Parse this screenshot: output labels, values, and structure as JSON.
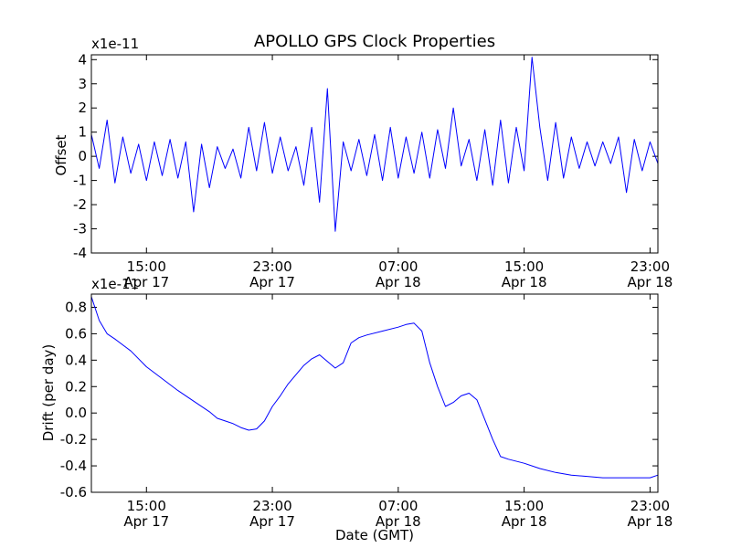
{
  "chart_data": [
    {
      "type": "line",
      "title": "APOLLO GPS Clock Properties",
      "ylabel": "Offset",
      "xlabel": "",
      "y_scale_label": "x1e-11",
      "ylim": [
        -4,
        4.2
      ],
      "yticks": [
        -4,
        -3,
        -2,
        -1,
        0,
        1,
        2,
        3,
        4
      ],
      "xlim": [
        "Apr 17 11:30",
        "Apr 18 23:30"
      ],
      "xticks": [
        {
          "time": "Apr 17 15:00",
          "label_top": "15:00",
          "label_bottom": "Apr 17"
        },
        {
          "time": "Apr 17 23:00",
          "label_top": "23:00",
          "label_bottom": "Apr 17"
        },
        {
          "time": "Apr 18 07:00",
          "label_top": "07:00",
          "label_bottom": "Apr 18"
        },
        {
          "time": "Apr 18 15:00",
          "label_top": "15:00",
          "label_bottom": "Apr 18"
        },
        {
          "time": "Apr 18 23:00",
          "label_top": "23:00",
          "label_bottom": "Apr 18"
        }
      ],
      "line_color": "#0000ff",
      "series": [
        {
          "x": [
            "Apr 17 11:30",
            "Apr 17 12:00",
            "Apr 17 12:30",
            "Apr 17 13:00",
            "Apr 17 13:30",
            "Apr 17 14:00",
            "Apr 17 14:30",
            "Apr 17 15:00",
            "Apr 17 15:30",
            "Apr 17 16:00",
            "Apr 17 16:30",
            "Apr 17 17:00",
            "Apr 17 17:30",
            "Apr 17 18:00",
            "Apr 17 18:30",
            "Apr 17 19:00",
            "Apr 17 19:30",
            "Apr 17 20:00",
            "Apr 17 20:30",
            "Apr 17 21:00",
            "Apr 17 21:30",
            "Apr 17 22:00",
            "Apr 17 22:30",
            "Apr 17 23:00",
            "Apr 17 23:30",
            "Apr 18 00:00",
            "Apr 18 00:30",
            "Apr 18 01:00",
            "Apr 18 01:30",
            "Apr 18 02:00",
            "Apr 18 02:30",
            "Apr 18 03:00",
            "Apr 18 03:30",
            "Apr 18 04:00",
            "Apr 18 04:30",
            "Apr 18 05:00",
            "Apr 18 05:30",
            "Apr 18 06:00",
            "Apr 18 06:30",
            "Apr 18 07:00",
            "Apr 18 07:30",
            "Apr 18 08:00",
            "Apr 18 08:30",
            "Apr 18 09:00",
            "Apr 18 09:30",
            "Apr 18 10:00",
            "Apr 18 10:30",
            "Apr 18 11:00",
            "Apr 18 11:30",
            "Apr 18 12:00",
            "Apr 18 12:30",
            "Apr 18 13:00",
            "Apr 18 13:30",
            "Apr 18 14:00",
            "Apr 18 14:30",
            "Apr 18 15:00",
            "Apr 18 15:30",
            "Apr 18 16:00",
            "Apr 18 16:30",
            "Apr 18 17:00",
            "Apr 18 17:30",
            "Apr 18 18:00",
            "Apr 18 18:30",
            "Apr 18 19:00",
            "Apr 18 19:30",
            "Apr 18 20:00",
            "Apr 18 20:30",
            "Apr 18 21:00",
            "Apr 18 21:30",
            "Apr 18 22:00",
            "Apr 18 22:30",
            "Apr 18 23:00",
            "Apr 18 23:30"
          ],
          "y": [
            0.9,
            -0.5,
            1.5,
            -1.1,
            0.8,
            -0.7,
            0.5,
            -1.0,
            0.6,
            -0.8,
            0.7,
            -0.9,
            0.6,
            -2.3,
            0.5,
            -1.3,
            0.4,
            -0.5,
            0.3,
            -0.9,
            1.2,
            -0.6,
            1.4,
            -0.7,
            0.8,
            -0.6,
            0.4,
            -1.2,
            1.2,
            -1.9,
            2.8,
            -3.1,
            0.6,
            -0.6,
            0.7,
            -0.8,
            0.9,
            -1.0,
            1.2,
            -0.9,
            0.8,
            -0.7,
            1.0,
            -0.9,
            1.1,
            -0.5,
            2.0,
            -0.4,
            0.7,
            -1.0,
            1.1,
            -1.2,
            1.5,
            -1.1,
            1.2,
            -0.6,
            4.1,
            1.2,
            -1.0,
            1.4,
            -0.9,
            0.8,
            -0.5,
            0.6,
            -0.4,
            0.6,
            -0.3,
            0.8,
            -1.5,
            0.7,
            -0.6,
            0.6,
            -0.3
          ]
        }
      ]
    },
    {
      "type": "line",
      "title": "",
      "ylabel": "Drift (per day)",
      "xlabel": "Date (GMT)",
      "y_scale_label": "x1e-11",
      "ylim": [
        -0.6,
        0.9
      ],
      "yticks": [
        -0.6,
        -0.4,
        -0.2,
        0.0,
        0.2,
        0.4,
        0.6,
        0.8
      ],
      "xlim": [
        "Apr 17 11:30",
        "Apr 18 23:30"
      ],
      "xticks": [
        {
          "time": "Apr 17 15:00",
          "label_top": "15:00",
          "label_bottom": "Apr 17"
        },
        {
          "time": "Apr 17 23:00",
          "label_top": "23:00",
          "label_bottom": "Apr 17"
        },
        {
          "time": "Apr 18 07:00",
          "label_top": "07:00",
          "label_bottom": "Apr 18"
        },
        {
          "time": "Apr 18 15:00",
          "label_top": "15:00",
          "label_bottom": "Apr 18"
        },
        {
          "time": "Apr 18 23:00",
          "label_top": "23:00",
          "label_bottom": "Apr 18"
        }
      ],
      "line_color": "#0000ff",
      "series": [
        {
          "x": [
            "Apr 17 11:30",
            "Apr 17 12:00",
            "Apr 17 12:30",
            "Apr 17 13:00",
            "Apr 17 14:00",
            "Apr 17 15:00",
            "Apr 17 16:00",
            "Apr 17 17:00",
            "Apr 17 18:00",
            "Apr 17 19:00",
            "Apr 17 19:30",
            "Apr 17 20:00",
            "Apr 17 20:30",
            "Apr 17 21:00",
            "Apr 17 21:30",
            "Apr 17 22:00",
            "Apr 17 22:30",
            "Apr 17 23:00",
            "Apr 17 23:30",
            "Apr 18 00:00",
            "Apr 18 01:00",
            "Apr 18 01:30",
            "Apr 18 02:00",
            "Apr 18 02:30",
            "Apr 18 03:00",
            "Apr 18 03:30",
            "Apr 18 04:00",
            "Apr 18 04:30",
            "Apr 18 05:00",
            "Apr 18 06:00",
            "Apr 18 07:00",
            "Apr 18 07:30",
            "Apr 18 08:00",
            "Apr 18 08:30",
            "Apr 18 09:00",
            "Apr 18 09:30",
            "Apr 18 10:00",
            "Apr 18 10:30",
            "Apr 18 11:00",
            "Apr 18 11:30",
            "Apr 18 12:00",
            "Apr 18 12:30",
            "Apr 18 13:00",
            "Apr 18 13:30",
            "Apr 18 14:00",
            "Apr 18 15:00",
            "Apr 18 16:00",
            "Apr 18 17:00",
            "Apr 18 18:00",
            "Apr 18 19:00",
            "Apr 18 20:00",
            "Apr 18 21:00",
            "Apr 18 22:00",
            "Apr 18 23:00",
            "Apr 18 23:30"
          ],
          "y": [
            0.88,
            0.7,
            0.6,
            0.56,
            0.47,
            0.35,
            0.26,
            0.17,
            0.09,
            0.01,
            -0.04,
            -0.06,
            -0.08,
            -0.11,
            -0.13,
            -0.12,
            -0.06,
            0.05,
            0.13,
            0.22,
            0.36,
            0.41,
            0.44,
            0.39,
            0.34,
            0.38,
            0.53,
            0.57,
            0.59,
            0.62,
            0.65,
            0.67,
            0.68,
            0.62,
            0.38,
            0.2,
            0.05,
            0.08,
            0.13,
            0.15,
            0.1,
            -0.05,
            -0.2,
            -0.33,
            -0.35,
            -0.38,
            -0.42,
            -0.45,
            -0.47,
            -0.48,
            -0.49,
            -0.49,
            -0.49,
            -0.49,
            -0.47
          ]
        }
      ]
    }
  ]
}
